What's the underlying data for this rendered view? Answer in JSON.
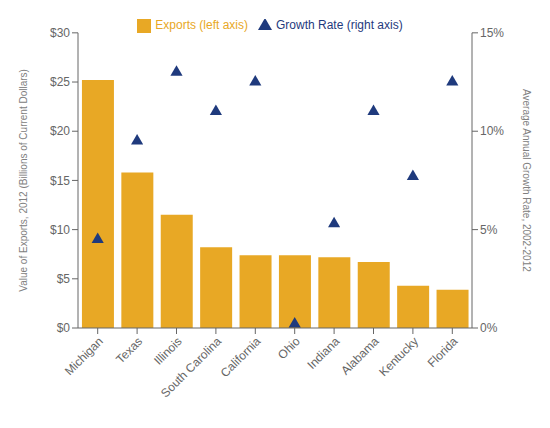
{
  "chart_data": {
    "type": "bar",
    "categories": [
      "Michigan",
      "Texas",
      "Illinois",
      "South Carolina",
      "California",
      "Ohio",
      "Indiana",
      "Alabama",
      "Kentucky",
      "Florida"
    ],
    "series": [
      {
        "name": "Exports (left axis)",
        "type": "bar",
        "color": "#E8A825",
        "values": [
          25.2,
          15.8,
          11.5,
          8.2,
          7.4,
          7.4,
          7.2,
          6.7,
          4.3,
          3.9
        ]
      },
      {
        "name": "Growth Rate (right axis)",
        "type": "scatter",
        "color": "#1F3A7D",
        "marker": "triangle",
        "axis": "y2",
        "values": [
          4.5,
          9.5,
          13.0,
          11.0,
          12.5,
          0.2,
          5.3,
          11.0,
          7.7,
          12.5
        ]
      }
    ],
    "ylabel": "Value of Exports, 2012 (Billions of Current Dollars)",
    "y2label": "Average Annual Growth Rate, 2002-2012",
    "ylim": [
      0,
      30
    ],
    "yticks": [
      {
        "value": 0,
        "label": "$0"
      },
      {
        "value": 5,
        "label": "$5"
      },
      {
        "value": 10,
        "label": "$10"
      },
      {
        "value": 15,
        "label": "$15"
      },
      {
        "value": 20,
        "label": "$20"
      },
      {
        "value": 25,
        "label": "$25"
      },
      {
        "value": 30,
        "label": "$30"
      }
    ],
    "y2lim": [
      0,
      15
    ],
    "y2ticks": [
      {
        "value": 0,
        "label": "0%"
      },
      {
        "value": 5,
        "label": "5%"
      },
      {
        "value": 10,
        "label": "10%"
      },
      {
        "value": 15,
        "label": "15%"
      }
    ],
    "grid": false,
    "legend": "top"
  }
}
